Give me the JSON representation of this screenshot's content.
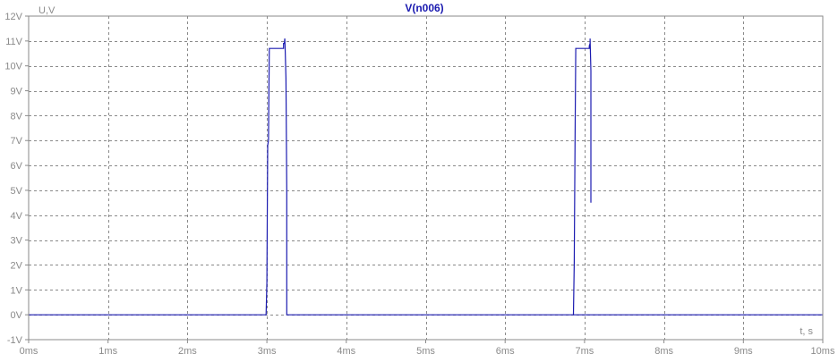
{
  "chart_data": {
    "type": "line",
    "title": "V(n006)",
    "xlabel": "t, s",
    "ylabel": "U,V",
    "xlim": [
      0,
      10
    ],
    "ylim": [
      -1,
      12
    ],
    "x_unit": "ms",
    "y_unit": "V",
    "x_ticks": [
      0,
      1,
      2,
      3,
      4,
      5,
      6,
      7,
      8,
      9,
      10
    ],
    "y_ticks": [
      -1,
      0,
      1,
      2,
      3,
      4,
      5,
      6,
      7,
      8,
      9,
      10,
      11,
      12
    ],
    "x_tick_labels": [
      "0ms",
      "1ms",
      "2ms",
      "3ms",
      "4ms",
      "5ms",
      "6ms",
      "7ms",
      "8ms",
      "9ms",
      "10ms"
    ],
    "y_tick_labels": [
      "-1V",
      "0V",
      "1V",
      "2V",
      "3V",
      "4V",
      "5V",
      "6V",
      "7V",
      "8V",
      "9V",
      "10V",
      "11V",
      "12V"
    ],
    "grid": true,
    "series": [
      {
        "name": "V(n006)",
        "color": "#1b1bb0",
        "x": [
          0,
          2.99,
          3.0,
          3.01,
          3.02,
          3.03,
          3.04,
          3.21,
          3.21,
          3.22,
          3.225,
          3.23,
          3.24,
          3.25,
          3.25,
          10,
          6.86,
          6.87,
          6.88,
          6.89,
          6.9,
          7.06,
          7.06,
          7.07,
          7.07,
          7.08,
          7.08
        ],
        "y": [
          0,
          0,
          1.3,
          6.8,
          7.0,
          10.7,
          10.7,
          10.7,
          10.9,
          10.9,
          11.1,
          10.7,
          9.5,
          5.0,
          0,
          0,
          0,
          2.1,
          7.0,
          10.7,
          10.7,
          10.7,
          10.8,
          10.9,
          11.1,
          9.8,
          4.5
        ],
        "note": ""
      }
    ]
  }
}
